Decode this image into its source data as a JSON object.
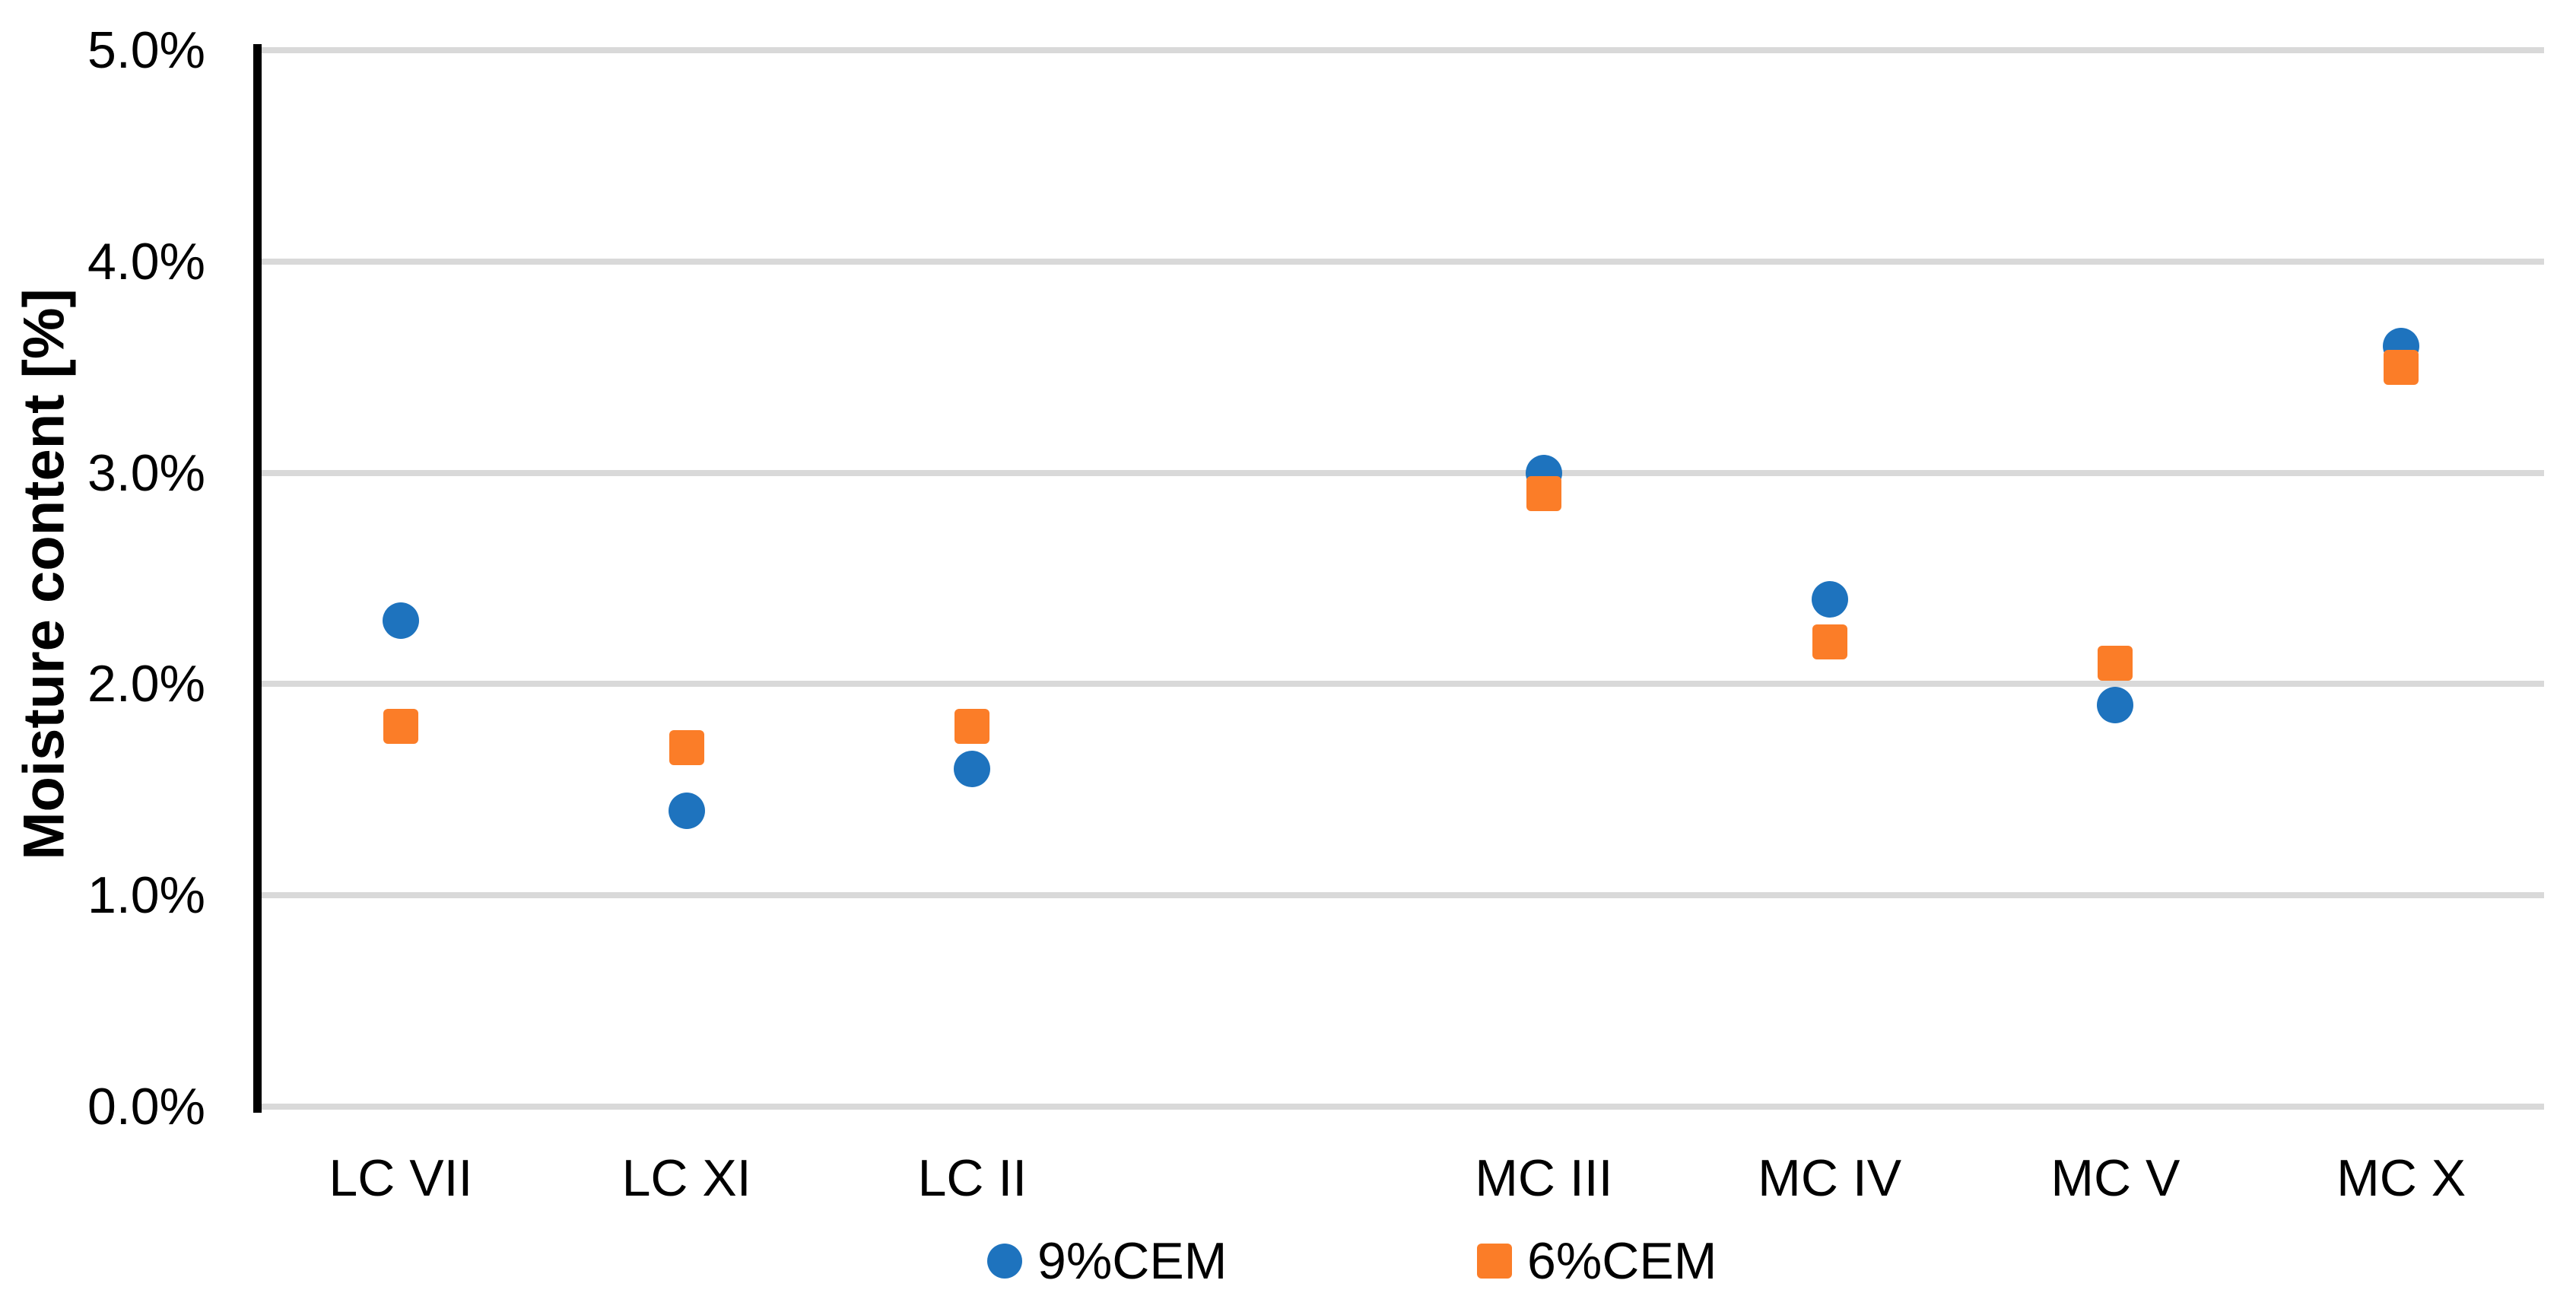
{
  "chart_data": {
    "type": "scatter",
    "title": "",
    "xlabel": "",
    "ylabel": "Moisture content [%]",
    "categories": [
      "LC VII",
      "LC XI",
      "LC II",
      "MC III",
      "MC IV",
      "MC V",
      "MC X"
    ],
    "category_slots": [
      0,
      1,
      2,
      4,
      5,
      6,
      7
    ],
    "slot_count": 8,
    "series": [
      {
        "name": "9%CEM",
        "marker": "circle",
        "color": "#1E73BE",
        "values": [
          2.3,
          1.4,
          1.6,
          3.0,
          2.4,
          1.9,
          3.6
        ]
      },
      {
        "name": "6%CEM",
        "marker": "square",
        "color": "#FB7D28",
        "values": [
          1.8,
          1.7,
          1.8,
          2.9,
          2.2,
          2.1,
          3.5
        ]
      }
    ],
    "values_unit": "%",
    "ylim": [
      0,
      5
    ],
    "ytick_labels": [
      "0.0%",
      "1.0%",
      "2.0%",
      "3.0%",
      "4.0%",
      "5.0%"
    ],
    "grid": "horizontal",
    "gridline_color": "#D9D9D9",
    "axis_color": "#000000",
    "legend_position": "bottom"
  }
}
